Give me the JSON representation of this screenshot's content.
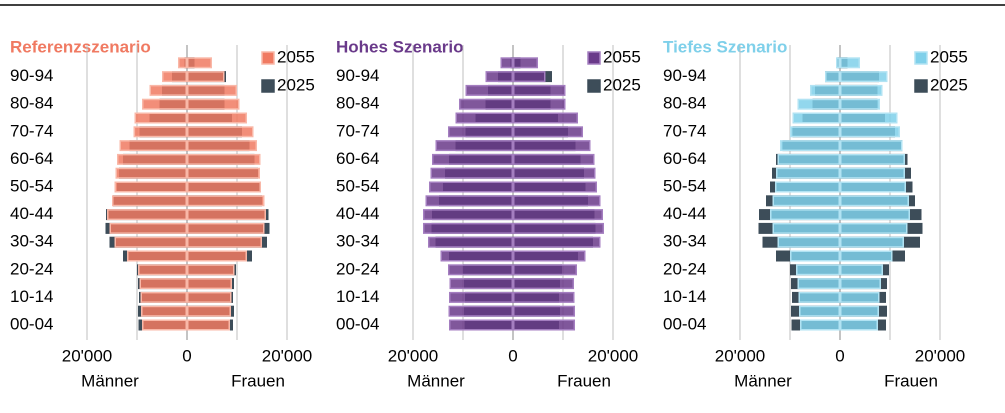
{
  "chart_data": [
    {
      "type": "pyramid",
      "title": "Referenzszenario",
      "left_label": "Männer",
      "right_label": "Frauen",
      "categories": [
        "00-04",
        null,
        "10-14",
        null,
        "20-24",
        null,
        "30-34",
        null,
        "40-44",
        null,
        "50-54",
        null,
        "60-64",
        null,
        "70-74",
        null,
        "80-84",
        null,
        "90-94",
        null
      ],
      "xlim": [
        -25000,
        25000
      ],
      "xticks": [
        {
          "value": -20000,
          "label": "20'000"
        },
        0,
        {
          "value": 20000,
          "label": "20'000"
        }
      ],
      "minor_xticks": [
        -10000,
        10000
      ],
      "grid": true,
      "series": [
        {
          "name": "2055",
          "color": "#f07a62",
          "border": "#f9b8a8",
          "men": [
            -9000,
            -9200,
            -9300,
            -9500,
            -9800,
            -12000,
            -14500,
            -15500,
            -16000,
            -15000,
            -14500,
            -14300,
            -14000,
            -13500,
            -10700,
            -10500,
            -9000,
            -7500,
            -5000,
            -1800
          ],
          "women": [
            8600,
            8800,
            8900,
            9000,
            9500,
            12000,
            15000,
            15500,
            15800,
            15500,
            14800,
            14600,
            14700,
            14000,
            13300,
            12000,
            10500,
            10000,
            7500,
            5000
          ]
        },
        {
          "name": "2025",
          "color": "#3d4d59",
          "border": "#3d4d59",
          "men": [
            -9700,
            -9800,
            -9600,
            -9800,
            -10000,
            -12800,
            -15500,
            -16300,
            -16200,
            -14800,
            -14000,
            -13600,
            -12800,
            -11500,
            -9500,
            -7500,
            -5500,
            -5000,
            -3000,
            -500
          ],
          "women": [
            9200,
            9400,
            9200,
            9400,
            9800,
            13000,
            16000,
            16500,
            16300,
            15000,
            14500,
            14200,
            13500,
            12500,
            11000,
            9000,
            7500,
            7500,
            7800,
            1500
          ]
        }
      ]
    },
    {
      "type": "pyramid",
      "title": "Hohes Szenario",
      "left_label": "Männer",
      "right_label": "Frauen",
      "categories": [
        "00-04",
        null,
        "10-14",
        null,
        "20-24",
        null,
        "30-34",
        null,
        "40-44",
        null,
        "50-54",
        null,
        "60-64",
        null,
        "70-74",
        null,
        "80-84",
        null,
        "90-94",
        null
      ],
      "xlim": [
        -25000,
        25000
      ],
      "xticks": [
        {
          "value": -20000,
          "label": "20'000"
        },
        0,
        {
          "value": 20000,
          "label": "20'000"
        }
      ],
      "minor_xticks": [
        -10000,
        10000
      ],
      "grid": true,
      "series": [
        {
          "name": "2055",
          "color": "#6a3a8a",
          "border": "#a47ec0",
          "men": [
            -12800,
            -12900,
            -12800,
            -12700,
            -13000,
            -14500,
            -17000,
            -18000,
            -18000,
            -17500,
            -16800,
            -16500,
            -16200,
            -15500,
            -13000,
            -11500,
            -10800,
            -9500,
            -5500,
            -2500
          ],
          "women": [
            12400,
            12400,
            12300,
            12200,
            12800,
            14500,
            17500,
            18200,
            18000,
            17500,
            16800,
            16500,
            16300,
            15500,
            14000,
            13000,
            10500,
            10500,
            6500,
            5000
          ]
        },
        {
          "name": "2025",
          "color": "#3d4d59",
          "border": "#3d4d59",
          "men": [
            -9700,
            -9800,
            -9600,
            -9800,
            -10000,
            -12800,
            -15500,
            -16300,
            -16200,
            -14800,
            -14000,
            -13600,
            -12800,
            -11500,
            -9500,
            -7500,
            -5500,
            -5000,
            -3000,
            -500
          ],
          "women": [
            9200,
            9400,
            9200,
            9400,
            9800,
            13000,
            16000,
            16500,
            16300,
            15000,
            14500,
            14200,
            13500,
            12500,
            11000,
            9000,
            7500,
            7500,
            7800,
            1500
          ]
        }
      ]
    },
    {
      "type": "pyramid",
      "title": "Tiefes Szenario",
      "left_label": "Männer",
      "right_label": "Frauen",
      "categories": [
        "00-04",
        null,
        "10-14",
        null,
        "20-24",
        null,
        "30-34",
        null,
        "40-44",
        null,
        "50-54",
        null,
        "60-64",
        null,
        "70-74",
        null,
        "80-84",
        null,
        "90-94",
        null
      ],
      "xlim": [
        -25000,
        25000
      ],
      "xticks": [
        {
          "value": -20000,
          "label": "20'000"
        },
        0,
        {
          "value": 20000,
          "label": "20'000"
        }
      ],
      "minor_xticks": [
        -10000,
        10000
      ],
      "grid": true,
      "series": [
        {
          "name": "2055",
          "color": "#7fd0ea",
          "border": "#b2e3f3",
          "men": [
            -8000,
            -8200,
            -8300,
            -8500,
            -8800,
            -10000,
            -12500,
            -13500,
            -14000,
            -13500,
            -13000,
            -12800,
            -12500,
            -12000,
            -10000,
            -9500,
            -8500,
            -6000,
            -3000,
            -800
          ],
          "women": [
            7600,
            7800,
            7900,
            8200,
            8600,
            10500,
            12800,
            13500,
            14000,
            13800,
            13200,
            13000,
            13000,
            12500,
            12000,
            11500,
            8000,
            8500,
            9500,
            4000
          ]
        },
        {
          "name": "2025",
          "color": "#3d4d59",
          "border": "#3d4d59",
          "men": [
            -9700,
            -9800,
            -9600,
            -9800,
            -10000,
            -12800,
            -15500,
            -16300,
            -16200,
            -14800,
            -14000,
            -13600,
            -12800,
            -11500,
            -9500,
            -7500,
            -5500,
            -5000,
            -3000,
            -500
          ],
          "women": [
            9200,
            9400,
            9200,
            9400,
            9800,
            13000,
            16000,
            16500,
            16300,
            15000,
            14500,
            14200,
            13500,
            12500,
            11000,
            9000,
            7500,
            7500,
            7800,
            1500
          ]
        }
      ]
    }
  ]
}
